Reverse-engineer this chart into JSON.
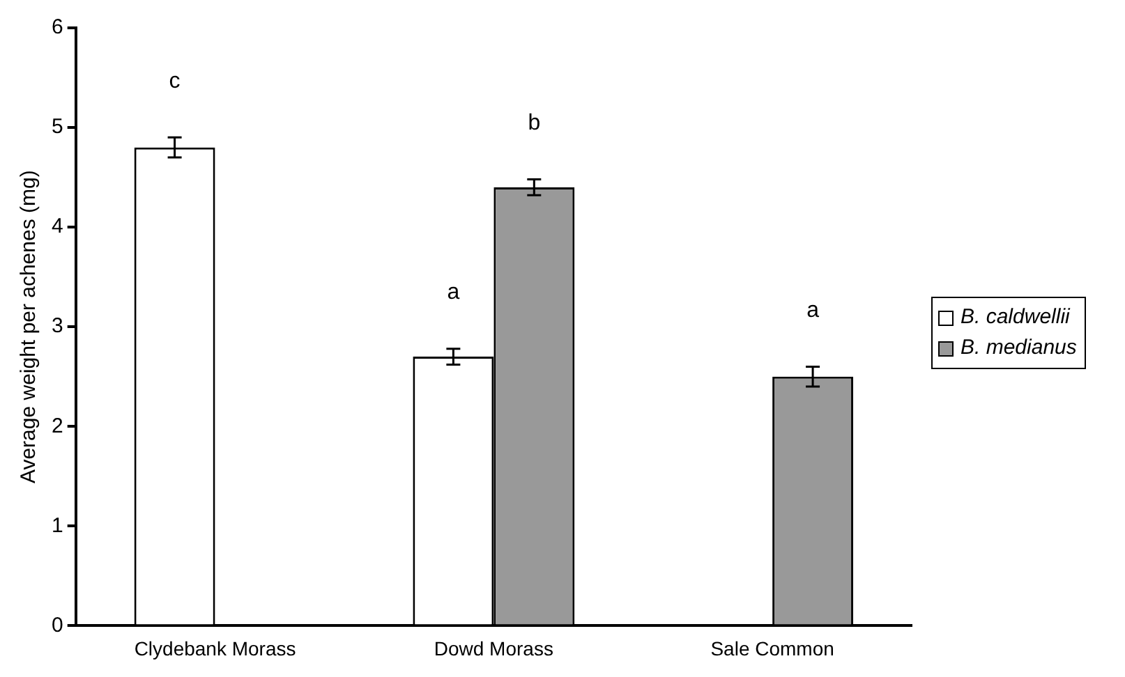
{
  "chart_data": {
    "type": "bar",
    "ylabel": "Average weight per achenes (mg)",
    "categories": [
      "Clydebank Morass",
      "Dowd Morass",
      "Sale Common"
    ],
    "series": [
      {
        "name": "B. caldwellii",
        "color": "#ffffff",
        "values": [
          4.8,
          2.7,
          null
        ],
        "errors": [
          0.1,
          0.08,
          null
        ]
      },
      {
        "name": "B. medianus",
        "color": "#999999",
        "values": [
          null,
          4.4,
          2.5
        ],
        "errors": [
          null,
          0.08,
          0.1
        ]
      }
    ],
    "ylim": [
      0,
      6
    ],
    "yticks": [
      0,
      1,
      2,
      3,
      4,
      5,
      6
    ],
    "grid": false,
    "legend": "right",
    "annotations": [
      "c",
      "a",
      "b",
      "a"
    ]
  }
}
